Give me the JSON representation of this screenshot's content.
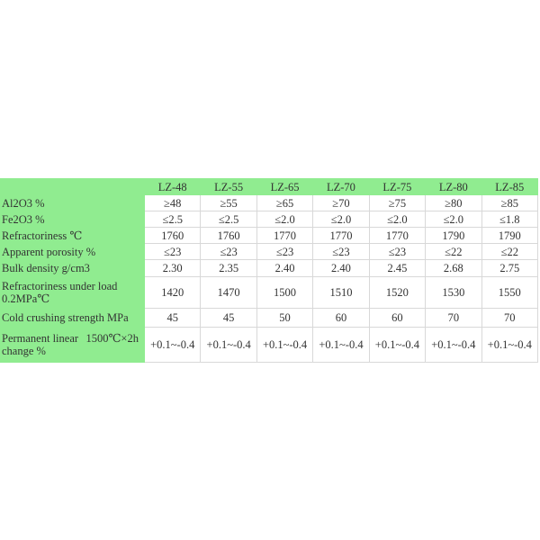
{
  "columns": [
    "LZ-48",
    "LZ-55",
    "LZ-65",
    "LZ-70",
    "LZ-75",
    "LZ-80",
    "LZ-85"
  ],
  "rows": [
    {
      "label": "Al2O3 %",
      "values": [
        "≥48",
        "≥55",
        "≥65",
        "≥70",
        "≥75",
        "≥80",
        "≥85"
      ]
    },
    {
      "label": "Fe2O3 %",
      "values": [
        "≤2.5",
        "≤2.5",
        "≤2.0",
        "≤2.0",
        "≤2.0",
        "≤2.0",
        "≤1.8"
      ]
    },
    {
      "label": "Refractoriness ℃",
      "values": [
        "1760",
        "1760",
        "1770",
        "1770",
        "1770",
        "1790",
        "1790"
      ]
    },
    {
      "label": "Apparent porosity %",
      "values": [
        "≤23",
        "≤23",
        "≤23",
        "≤23",
        "≤23",
        "≤22",
        "≤22"
      ]
    },
    {
      "label": "Bulk density g/cm3",
      "values": [
        "2.30",
        "2.35",
        "2.40",
        "2.40",
        "2.45",
        "2.68",
        "2.75"
      ]
    },
    {
      "label": "Refractoriness under load 0.2MPa℃",
      "values": [
        "1420",
        "1470",
        "1500",
        "1510",
        "1520",
        "1530",
        "1550"
      ]
    },
    {
      "label": "Cold crushing strength MPa",
      "values": [
        "45",
        "45",
        "50",
        "60",
        "60",
        "70",
        "70"
      ]
    },
    {
      "label": "Permanent linear change %",
      "label_extra": "1500℃×2h",
      "values": [
        "+0.1~-0.4",
        "+0.1~-0.4",
        "+0.1~-0.4",
        "+0.1~-0.4",
        "+0.1~-0.4",
        "+0.1~-0.4",
        "+0.1~-0.4"
      ]
    }
  ],
  "colors": {
    "header_bg": "#90ec90",
    "border": "#d8d8d8"
  }
}
